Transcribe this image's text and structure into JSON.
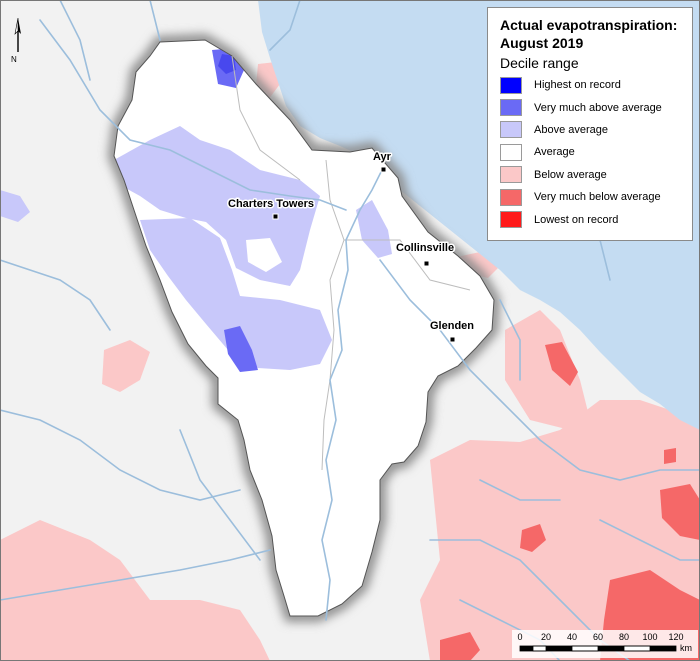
{
  "legend": {
    "title_line1": "Actual evapotranspiration:",
    "title_line2": "August 2019",
    "subtitle": "Decile range",
    "items": [
      {
        "label": "Highest on record",
        "color": "#0000ff"
      },
      {
        "label": "Very much above average",
        "color": "#6a6af5"
      },
      {
        "label": "Above average",
        "color": "#c8c8fa"
      },
      {
        "label": "Average",
        "color": "#ffffff"
      },
      {
        "label": "Below average",
        "color": "#fbc8c8"
      },
      {
        "label": "Very much below average",
        "color": "#f56868"
      },
      {
        "label": "Lowest on record",
        "color": "#ff1a1a"
      }
    ]
  },
  "towns": [
    {
      "name": "Ayr"
    },
    {
      "name": "Charters Towers"
    },
    {
      "name": "Collinsville"
    },
    {
      "name": "Glenden"
    }
  ],
  "north_arrow": {
    "label": "N"
  },
  "scale": {
    "ticks": [
      "0",
      "20",
      "40",
      "60",
      "80",
      "100",
      "120"
    ],
    "unit": "km"
  },
  "colors": {
    "sea": "#c4dcf2",
    "basin": "#ffffff",
    "outside": "#f2f2f2",
    "rivers": "#9cbedc"
  }
}
